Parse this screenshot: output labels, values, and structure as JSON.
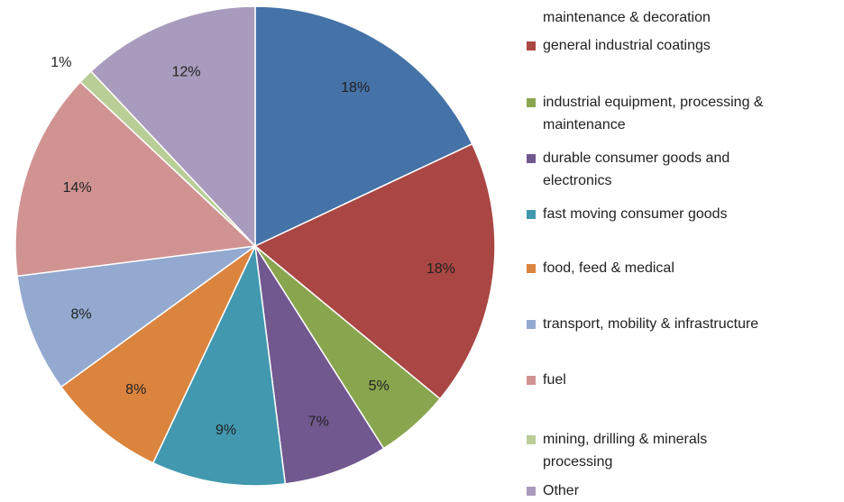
{
  "chart_data": {
    "type": "pie",
    "categories": [
      "maintenance & decoration",
      "general industrial coatings",
      "industrial equipment, processing & maintenance",
      "durable consumer goods and electronics",
      "fast moving consumer goods",
      "food, feed & medical",
      "transport, mobility & infrastructure",
      "fuel",
      "mining, drilling & minerals processing",
      "Other"
    ],
    "values": [
      18,
      18,
      5,
      7,
      9,
      8,
      8,
      14,
      1,
      12
    ],
    "value_labels": [
      "18%",
      "18%",
      "5%",
      "7%",
      "9%",
      "8%",
      "8%",
      "14%",
      "1%",
      "12%"
    ],
    "colors": [
      "#4572a7",
      "#aa4643",
      "#89a54e",
      "#71588f",
      "#4198af",
      "#db843d",
      "#93a9cf",
      "#d19392",
      "#b9cd96",
      "#a99bbd"
    ],
    "legend": "right"
  }
}
